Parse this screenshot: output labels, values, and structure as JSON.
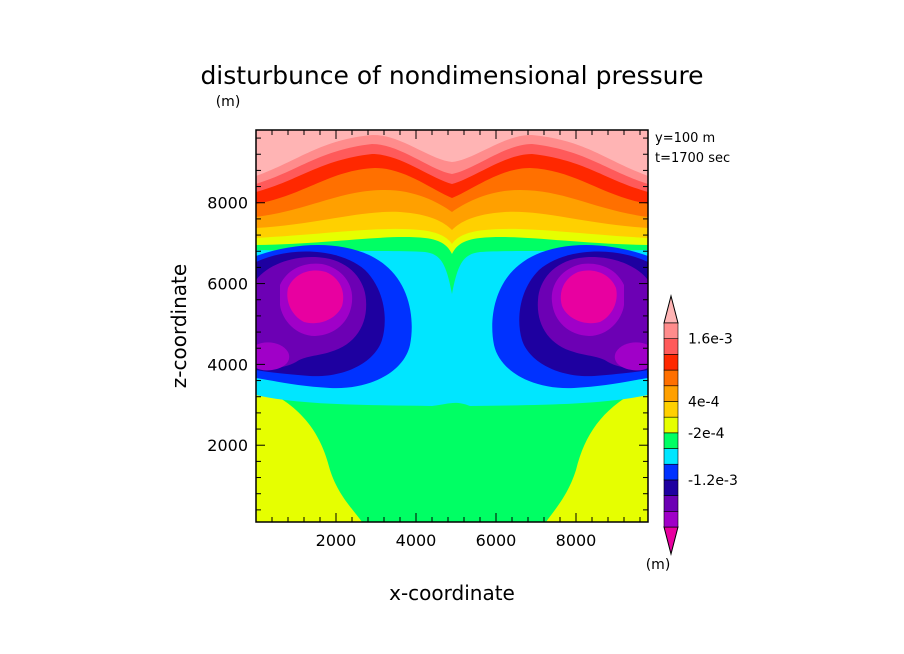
{
  "chart_data": {
    "type": "heatmap",
    "title": "disturbunce of nondimensional pressure",
    "xlabel": "x-coordinate",
    "ylabel": "z-coordinate",
    "x_unit_label": "(m)",
    "y_unit_label": "(m)",
    "xlim": [
      0,
      9800
    ],
    "ylim": [
      100,
      9800
    ],
    "x_ticks": [
      2000,
      4000,
      6000,
      8000
    ],
    "y_ticks": [
      2000,
      4000,
      6000,
      8000
    ],
    "x_tick_labels": [
      "2000",
      "4000",
      "6000",
      "8000"
    ],
    "y_tick_labels": [
      "2000",
      "4000",
      "6000",
      "8000"
    ],
    "annotations": [
      "y=100 m",
      "t=1700 sec"
    ],
    "colorbar": {
      "colors": [
        "#e800a0",
        "#a000c8",
        "#6c00b4",
        "#1e00a0",
        "#0032ff",
        "#00e6ff",
        "#00ff64",
        "#e6ff00",
        "#ffd000",
        "#ffa000",
        "#ff7000",
        "#ff2800",
        "#ff5a5a",
        "#ff8c8c",
        "#ffb4b4"
      ],
      "labels": [
        {
          "text": "1.6e-3",
          "value": 0.0016
        },
        {
          "text": "4e-4",
          "value": 0.0004
        },
        {
          "text": "-2e-4",
          "value": -0.0002
        },
        {
          "text": "-1.2e-3",
          "value": -0.0012
        }
      ],
      "unit_label": "(m)"
    },
    "contour_levels": [
      {
        "level": 14,
        "color": "#ffb4b4",
        "region": "top band"
      },
      {
        "level": 13,
        "color": "#ff8c8c",
        "region": "upper band"
      },
      {
        "level": 12,
        "color": "#ff5a5a",
        "region": "upper band"
      },
      {
        "level": 11,
        "color": "#ff2800",
        "region": "upper band"
      },
      {
        "level": 10,
        "color": "#ff7000",
        "region": "upper band"
      },
      {
        "level": 9,
        "color": "#ffa000",
        "region": "upper band"
      },
      {
        "level": 8,
        "color": "#ffd000",
        "region": "upper band"
      },
      {
        "level": 7,
        "color": "#e6ff00",
        "region": "bottom corners"
      },
      {
        "level": 6,
        "color": "#00ff64",
        "region": "lower center"
      },
      {
        "level": 5,
        "color": "#00e6ff",
        "region": "center"
      },
      {
        "level": 4,
        "color": "#0032ff",
        "region": "vortex rings"
      },
      {
        "level": 3,
        "color": "#1e00a0",
        "region": "vortex rings"
      },
      {
        "level": 2,
        "color": "#6c00b4",
        "region": "vortex cores"
      },
      {
        "level": 1,
        "color": "#a000c8",
        "region": "vortex cores"
      },
      {
        "level": 0,
        "color": "#e800a0",
        "region": "vortex centers"
      }
    ]
  }
}
